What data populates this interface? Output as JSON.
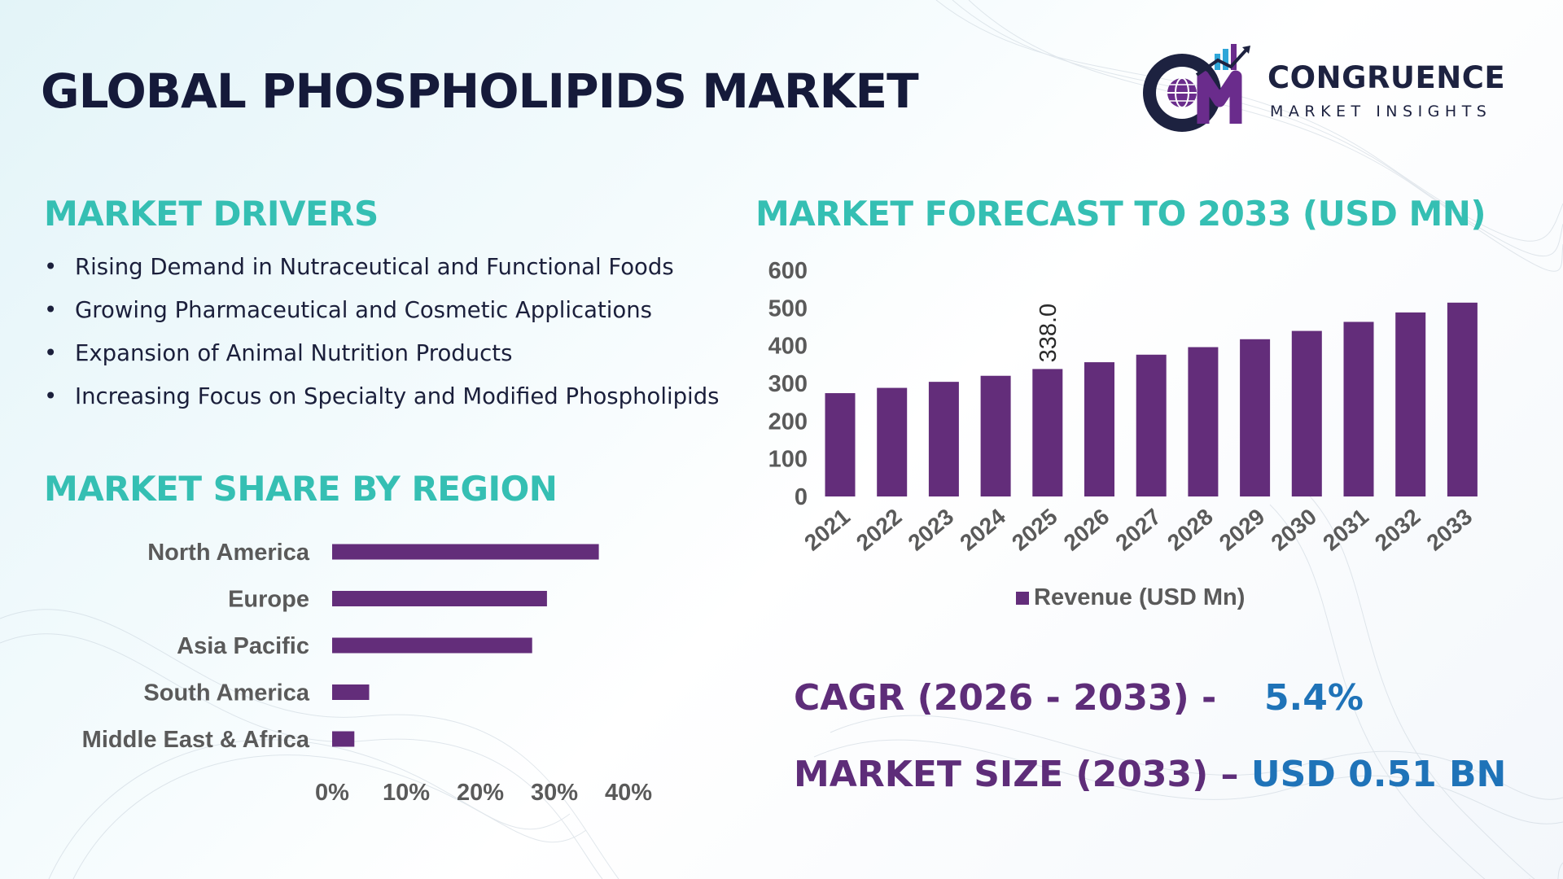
{
  "header": {
    "title": "GLOBAL PHOSPHOLIPIDS MARKET"
  },
  "logo": {
    "name": "CONGRUENCE",
    "tagline": "MARKET INSIGHTS",
    "mark": "CM",
    "icon": "globe-chart-logo-icon"
  },
  "drivers": {
    "title": "MARKET DRIVERS",
    "items": [
      "Rising Demand in Nutraceutical and Functional Foods",
      "Growing Pharmaceutical and Cosmetic Applications",
      "Expansion of Animal Nutrition Products",
      "Increasing Focus on Specialty and Modified Phospholipids"
    ]
  },
  "region": {
    "title": "MARKET SHARE BY REGION"
  },
  "forecast": {
    "title": "MARKET FORECAST TO 2033 (USD MN)"
  },
  "stats": {
    "cagr_label": "CAGR (2026 - 2033) -",
    "cagr_value": "5.4%",
    "size_label": "MARKET SIZE (2033) –",
    "size_value": "USD 0.51 BN"
  },
  "colors": {
    "bar": "#632d7a",
    "accent_teal": "#35bfb3",
    "stat_purple": "#5e2d79",
    "stat_blue": "#1f73b8",
    "title_navy": "#151a3a"
  },
  "chart_data": [
    {
      "type": "bar",
      "orientation": "horizontal",
      "title": "MARKET SHARE BY REGION",
      "categories": [
        "North America",
        "Europe",
        "Asia Pacific",
        "South America",
        "Middle East & Africa"
      ],
      "values": [
        36,
        29,
        27,
        5,
        3
      ],
      "xlim": [
        0,
        40
      ],
      "ticks": [
        "0%",
        "10%",
        "20%",
        "30%",
        "40%"
      ],
      "grid": false
    },
    {
      "type": "bar",
      "title": "MARKET FORECAST TO 2033 (USD MN)",
      "categories": [
        "2021",
        "2022",
        "2023",
        "2024",
        "2025",
        "2026",
        "2027",
        "2028",
        "2029",
        "2030",
        "2031",
        "2032",
        "2033"
      ],
      "series": [
        {
          "name": "Revenue (USD Mn)",
          "values": [
            274,
            288,
            304,
            320,
            338,
            356,
            376,
            396,
            417,
            439,
            463,
            488,
            514
          ]
        }
      ],
      "data_labels": [
        {
          "category": "2025",
          "text": "338.0"
        }
      ],
      "ylim": [
        0,
        600
      ],
      "yticks": [
        "0",
        "100",
        "200",
        "300",
        "400",
        "500",
        "600"
      ],
      "legend": "bottom",
      "grid": false
    }
  ]
}
